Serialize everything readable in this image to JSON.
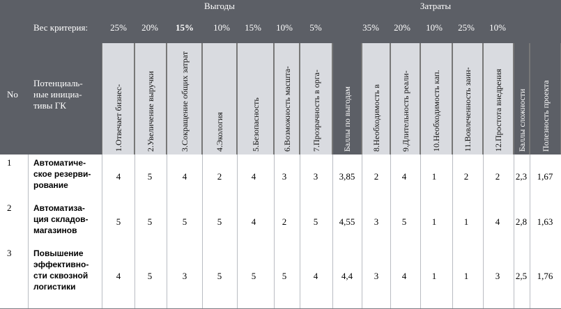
{
  "header": {
    "benefits_title": "Выгоды",
    "costs_title": "Затраты",
    "weight_label": "Вес критерия:",
    "no_label": "No",
    "initiatives_label": "Потенциаль-ные инициа-тивы ГК",
    "weights": [
      "25%",
      "20%",
      "15%",
      "10%",
      "15%",
      "10%",
      "5%",
      "35%",
      "20%",
      "10%",
      "25%",
      "10%"
    ]
  },
  "columns": [
    "1.Отвечает бизнес-",
    "2.Увеличение выручки",
    "3.Сокращение общих затрат",
    "4.Экология",
    "5.Безопасность",
    "6.Возможность масшта-",
    "7.Прозрачность в орга-",
    "Баллы по выгодам",
    "8.Необходимость в",
    "9.Длительность реали-",
    "10.Необходимость кап.",
    "11.Вовлеченность заин-",
    "12.Простота внедрения",
    "Баллы сложности",
    "Полезность проекта"
  ],
  "rows": [
    {
      "no": "1",
      "name": "Автоматиче-ское резерви-рование",
      "values": [
        "4",
        "5",
        "4",
        "2",
        "4",
        "3",
        "3",
        "3,85",
        "2",
        "4",
        "1",
        "2",
        "2",
        "2,3",
        "1,67"
      ]
    },
    {
      "no": "2",
      "name": "Автоматиза-ция складов-магазинов",
      "values": [
        "5",
        "5",
        "5",
        "5",
        "4",
        "2",
        "5",
        "4,55",
        "3",
        "5",
        "1",
        "1",
        "4",
        "2,8",
        "1,63"
      ]
    },
    {
      "no": "3",
      "name": "Повышение эффективно-сти сквозной логистики",
      "values": [
        "4",
        "5",
        "3",
        "5",
        "5",
        "5",
        "4",
        "4,4",
        "3",
        "4",
        "1",
        "1",
        "3",
        "2,5",
        "1,76"
      ]
    }
  ]
}
